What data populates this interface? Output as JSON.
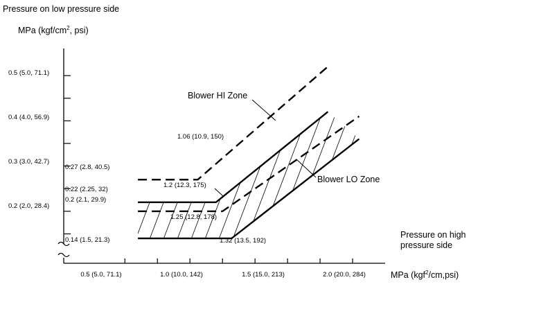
{
  "chart_data": {
    "type": "line",
    "title": "Pressure on low pressure side",
    "ylabel_prefix": "MPa (kgf/cm",
    "ylabel_sup": "2",
    "ylabel_suffix": ", psi)",
    "xlabel_title_line1": "Pressure on high",
    "xlabel_title_line2": "pressure side",
    "xlabel_prefix": "MPa (kgf",
    "xlabel_sup": "2",
    "xlabel_suffix": "/cm,psi)",
    "xlim": [
      0.03,
      2.5
    ],
    "ylim": [
      0.085,
      0.56
    ],
    "x_ticks": [
      {
        "value": 0.5,
        "label": "0.5 (5.0, 71.1)"
      },
      {
        "value": 1.0,
        "label": "1.0 (10.0, 142)"
      },
      {
        "value": 1.5,
        "label": "1.5 (15.0, 213)"
      },
      {
        "value": 2.0,
        "label": "2.0 (20.0, 284)"
      }
    ],
    "x_minor_ticks": [
      0.5,
      0.75,
      1.0,
      1.25,
      1.5,
      1.75,
      2.0,
      2.25
    ],
    "y_ticks": [
      {
        "value": 0.5,
        "label": "0.5 (5.0, 71.1)"
      },
      {
        "value": 0.4,
        "label": "0.4 (4.0, 56.9)"
      },
      {
        "value": 0.3,
        "label": "0.3 (3.0, 42.7)"
      },
      {
        "value": 0.2,
        "label": "0.2 (2.0, 28.4)"
      }
    ],
    "y_minor_ticks": [
      0.15,
      0.2,
      0.25,
      0.3,
      0.35,
      0.4,
      0.45,
      0.5
    ],
    "series": [
      {
        "name": "hi_upper",
        "style": "dashed",
        "points": [
          [
            0.6,
            0.27
          ],
          [
            1.06,
            0.27
          ],
          [
            2.06,
            0.52
          ]
        ]
      },
      {
        "name": "lo_upper",
        "style": "solid",
        "points": [
          [
            0.6,
            0.22
          ],
          [
            1.2,
            0.22
          ],
          [
            2.06,
            0.42
          ]
        ]
      },
      {
        "name": "hi_lower",
        "style": "dashed",
        "points": [
          [
            0.6,
            0.2
          ],
          [
            1.25,
            0.2
          ],
          [
            2.3,
            0.41
          ]
        ]
      },
      {
        "name": "lo_lower",
        "style": "solid",
        "points": [
          [
            0.6,
            0.14
          ],
          [
            1.32,
            0.14
          ],
          [
            2.3,
            0.36
          ]
        ]
      }
    ],
    "hatched_zone": [
      [
        0.6,
        0.22
      ],
      [
        1.2,
        0.22
      ],
      [
        2.06,
        0.42
      ],
      [
        2.3,
        0.36
      ],
      [
        1.32,
        0.14
      ],
      [
        0.6,
        0.14
      ]
    ],
    "point_labels": [
      {
        "text": "0.27 (2.8, 40.5)",
        "x": 0.6,
        "y": 0.27
      },
      {
        "text": "1.06 (10.9, 150)",
        "x": 1.06,
        "y": 0.27
      },
      {
        "text": "0.22 (2.25, 32)",
        "x": 0.6,
        "y": 0.22
      },
      {
        "text": "1.2 (12.3, 175)",
        "x": 1.2,
        "y": 0.22
      },
      {
        "text": "0.2 (2.1, 29.9)",
        "x": 0.6,
        "y": 0.2
      },
      {
        "text": "1.25 (12.8, 178)",
        "x": 1.25,
        "y": 0.2
      },
      {
        "text": "0.14 (1.5, 21.3)",
        "x": 0.6,
        "y": 0.14
      },
      {
        "text": "1.32 (13.5, 192)",
        "x": 1.32,
        "y": 0.14
      }
    ],
    "annotations": [
      {
        "text": "Blower HI Zone"
      },
      {
        "text": "Blower LO Zone"
      }
    ]
  }
}
